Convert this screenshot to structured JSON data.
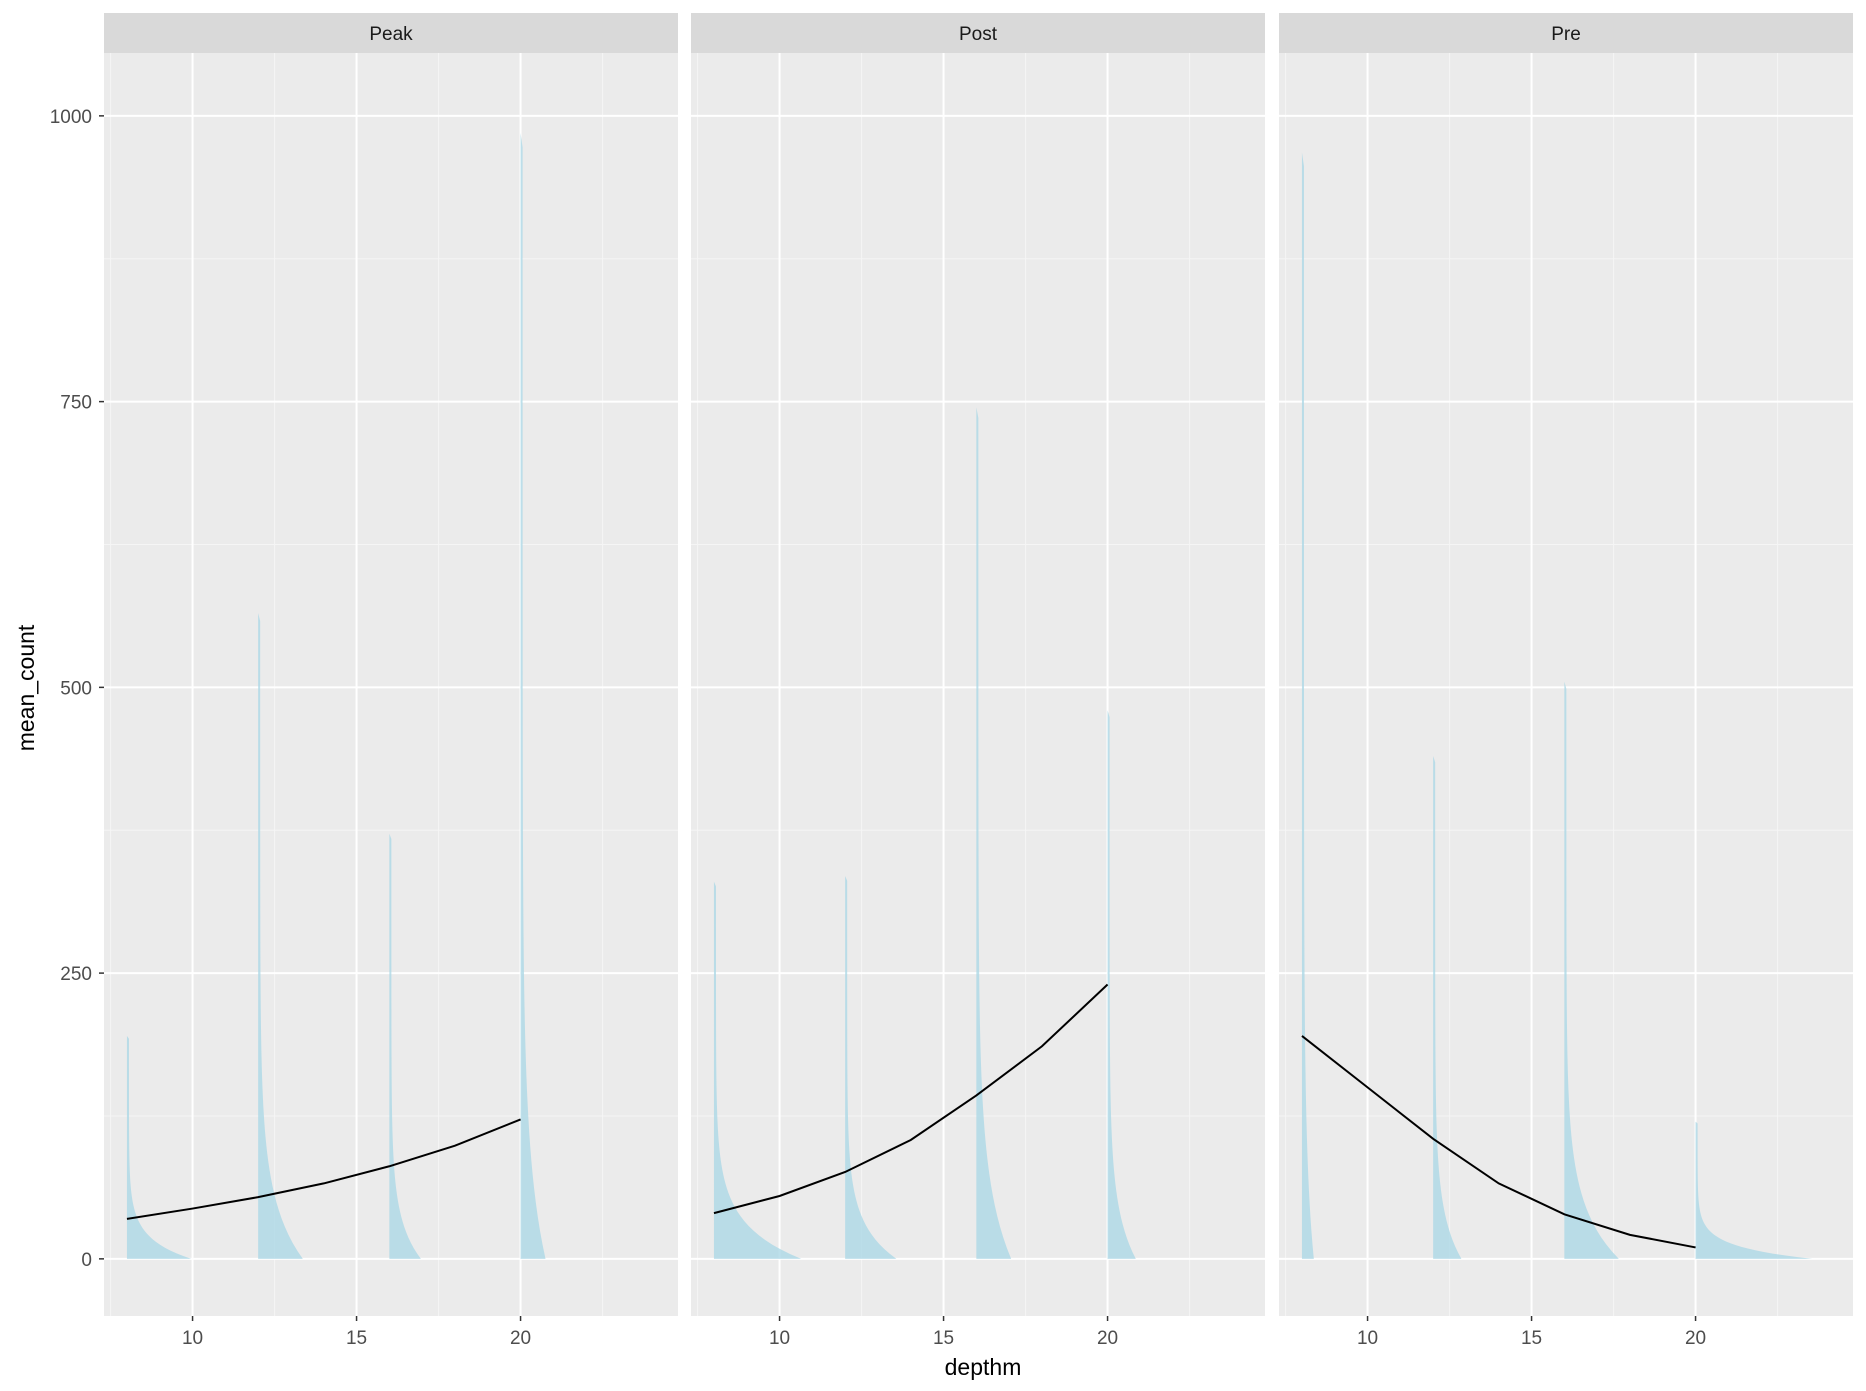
{
  "chart_data": {
    "type": "area",
    "xlabel": "depthm",
    "ylabel": "mean_count",
    "x_ticks": [
      10,
      15,
      20
    ],
    "y_ticks": [
      0,
      250,
      500,
      750,
      1000
    ],
    "xlim": [
      7.3,
      24.8
    ],
    "ylim": [
      -50,
      1055
    ],
    "grid": true,
    "legend": "none",
    "colors": {
      "panel_bg": "#EBEBEB",
      "strip_bg": "#D9D9D9",
      "grid_major": "#FFFFFF",
      "density_fill": "#ADD8E6",
      "trend_line": "#000000",
      "tick_text": "#4D4D4D"
    },
    "facets": [
      {
        "label": "Peak",
        "densities": [
          {
            "x": 8,
            "max": 195,
            "width": 1.9
          },
          {
            "x": 12,
            "max": 565,
            "width": 1.3
          },
          {
            "x": 16,
            "max": 372,
            "width": 0.9
          },
          {
            "x": 20,
            "max": 985,
            "width": 0.7
          }
        ],
        "trend": {
          "x": [
            8,
            10,
            12,
            14,
            16,
            18,
            20
          ],
          "y": [
            35,
            44,
            54,
            66,
            81,
            99,
            122
          ]
        }
      },
      {
        "label": "Post",
        "densities": [
          {
            "x": 8,
            "max": 330,
            "width": 2.6
          },
          {
            "x": 12,
            "max": 335,
            "width": 1.5
          },
          {
            "x": 16,
            "max": 745,
            "width": 1.0
          },
          {
            "x": 20,
            "max": 480,
            "width": 0.8
          }
        ],
        "trend": {
          "x": [
            8,
            10,
            12,
            14,
            16,
            18,
            20
          ],
          "y": [
            40,
            55,
            76,
            104,
            143,
            186,
            240
          ]
        }
      },
      {
        "label": "Pre",
        "densities": [
          {
            "x": 8,
            "max": 968,
            "width": 0.3
          },
          {
            "x": 12,
            "max": 440,
            "width": 0.8
          },
          {
            "x": 16,
            "max": 505,
            "width": 1.6
          },
          {
            "x": 20,
            "max": 120,
            "width": 3.5
          }
        ],
        "trend": {
          "x": [
            8,
            10,
            12,
            14,
            16,
            18,
            20
          ],
          "y": [
            195,
            150,
            105,
            66,
            39,
            21,
            10
          ]
        }
      }
    ]
  }
}
